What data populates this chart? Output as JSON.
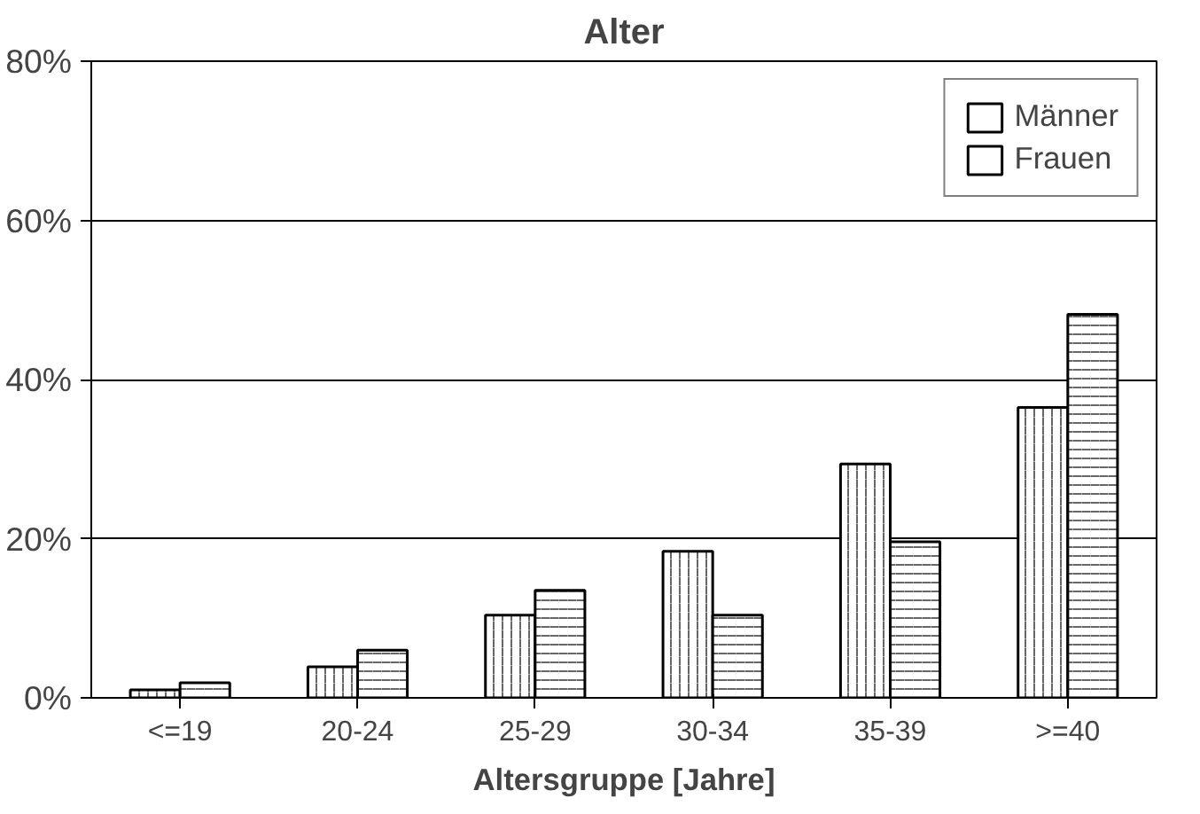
{
  "chart_data": {
    "type": "bar",
    "title": "Alter",
    "xlabel": "Altersgruppe [Jahre]",
    "categories": [
      "<=19",
      "20-24",
      "25-29",
      "30-34",
      "35-39",
      ">=40"
    ],
    "series": [
      {
        "name": "Männer",
        "color": "#ffffff",
        "values": [
          1.0,
          3.9,
          10.4,
          18.4,
          29.4,
          36.5
        ]
      },
      {
        "name": "Frauen",
        "color": "#ffffff",
        "values": [
          1.9,
          6.0,
          13.5,
          10.4,
          19.6,
          48.2
        ]
      }
    ],
    "ylim": [
      0,
      80
    ],
    "yticks": [
      {
        "value": 0,
        "label": "0%"
      },
      {
        "value": 20,
        "label": "20%"
      },
      {
        "value": 40,
        "label": "40%"
      },
      {
        "value": 60,
        "label": "60%"
      },
      {
        "value": 80,
        "label": "80%"
      }
    ],
    "grid": "y",
    "legend": "top right"
  }
}
